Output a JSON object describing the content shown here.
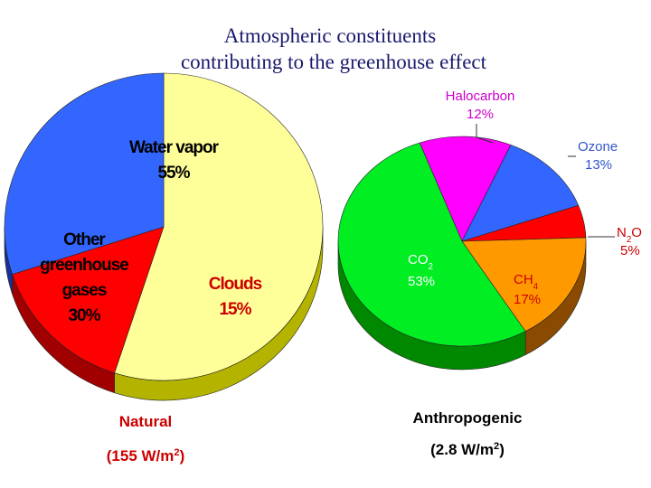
{
  "title_lines": [
    "Atmospheric constituents",
    "contributing to the greenhouse effect"
  ],
  "chart_data": [
    {
      "type": "pie",
      "caption": "Natural",
      "total": "(155 W/m2)",
      "slices": [
        {
          "name_lines": [
            "Water vapor"
          ],
          "value_text": "55%",
          "value": 55,
          "color": "#ffff99",
          "side_color": "#b3b300"
        },
        {
          "name_lines": [
            "Clouds"
          ],
          "value_text": "15%",
          "value": 15,
          "color": "#ff0000",
          "side_color": "#a00000"
        },
        {
          "name_lines": [
            "Other",
            "greenhouse",
            "gases"
          ],
          "value_text": "30%",
          "value": 30,
          "color": "#3366ff",
          "side_color": "#1a2f99"
        }
      ]
    },
    {
      "type": "pie",
      "caption": "Anthropogenic",
      "total": "(2.8 W/m2)",
      "slices": [
        {
          "name": "Halocarbon",
          "value_text": "12%",
          "value": 12,
          "color": "#ff00ff",
          "side_color": "#990099"
        },
        {
          "name": "Ozone",
          "value_text": "13%",
          "value": 13,
          "color": "#3366ff",
          "side_color": "#1a2f99"
        },
        {
          "name": "N2O",
          "value_text": "5%",
          "value": 5,
          "color": "#ff0000",
          "side_color": "#a00000"
        },
        {
          "name": "CH4",
          "value_text": "17%",
          "value": 17,
          "color": "#ff9900",
          "side_color": "#8a4a00"
        },
        {
          "name": "CO2",
          "value_text": "53%",
          "value": 53,
          "color": "#00ee22",
          "side_color": "#008800"
        }
      ]
    }
  ]
}
